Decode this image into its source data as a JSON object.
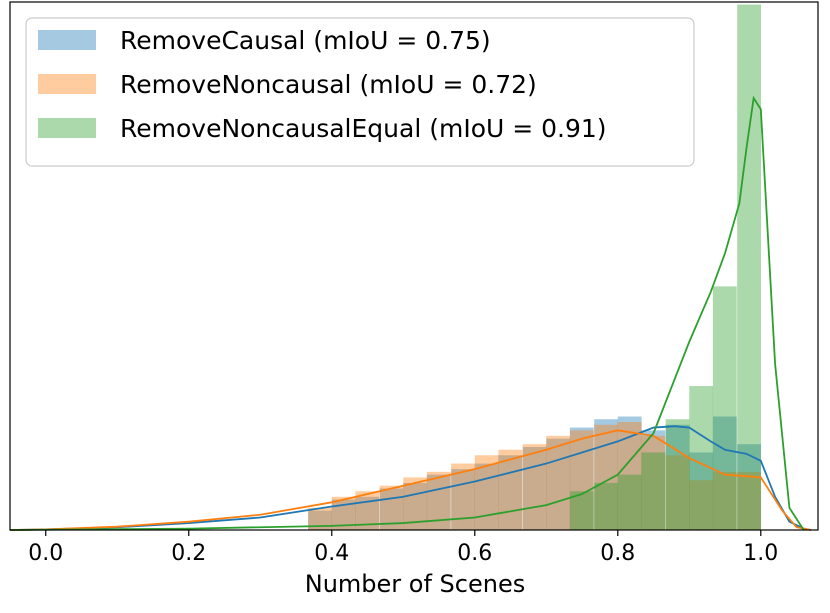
{
  "chart_data": {
    "type": "histogram",
    "title": "",
    "xlabel": "Number of Scenes",
    "ylabel": "",
    "xlim": [
      -0.05,
      1.08
    ],
    "ylim": [
      0,
      1
    ],
    "x_ticks": [
      "0.0",
      "0.2",
      "0.4",
      "0.6",
      "0.8",
      "1.0"
    ],
    "x_tick_values": [
      0.0,
      0.2,
      0.4,
      0.6,
      0.8,
      1.0
    ],
    "grid": false,
    "legend_position": "top-left",
    "bin_width": 0.0333,
    "series": [
      {
        "name": "RemoveCausal (mIoU = 0.75)",
        "color": "#1f77b4",
        "hist_bins": [
          0.367,
          0.4,
          0.433,
          0.467,
          0.5,
          0.533,
          0.567,
          0.6,
          0.633,
          0.667,
          0.7,
          0.733,
          0.767,
          0.8,
          0.833,
          0.867,
          0.9,
          0.933,
          0.967
        ],
        "hist_values": [
          0.07,
          0.11,
          0.12,
          0.15,
          0.17,
          0.2,
          0.22,
          0.24,
          0.27,
          0.3,
          0.33,
          0.37,
          0.4,
          0.41,
          0.36,
          0.38,
          0.28,
          0.41,
          0.31
        ],
        "kde_x": [
          -0.05,
          0.0,
          0.1,
          0.2,
          0.3,
          0.4,
          0.5,
          0.6,
          0.7,
          0.8,
          0.85,
          0.88,
          0.9,
          0.93,
          0.95,
          0.98,
          1.0,
          1.02,
          1.04,
          1.06,
          1.07
        ],
        "kde_y": [
          0.0,
          0.002,
          0.01,
          0.025,
          0.045,
          0.085,
          0.12,
          0.175,
          0.24,
          0.32,
          0.37,
          0.375,
          0.37,
          0.32,
          0.29,
          0.275,
          0.25,
          0.12,
          0.03,
          0.005,
          0.0
        ]
      },
      {
        "name": "RemoveNoncausal (mIoU = 0.72)",
        "color": "#ff7f0e",
        "hist_bins": [
          0.367,
          0.4,
          0.433,
          0.467,
          0.5,
          0.533,
          0.567,
          0.6,
          0.633,
          0.667,
          0.7,
          0.733,
          0.767,
          0.8,
          0.833,
          0.867,
          0.9,
          0.933,
          0.967
        ],
        "hist_values": [
          0.08,
          0.12,
          0.14,
          0.16,
          0.19,
          0.21,
          0.24,
          0.27,
          0.29,
          0.31,
          0.34,
          0.36,
          0.38,
          0.39,
          0.34,
          0.27,
          0.18,
          0.21,
          0.21
        ],
        "kde_x": [
          -0.05,
          0.0,
          0.1,
          0.2,
          0.3,
          0.4,
          0.5,
          0.6,
          0.7,
          0.75,
          0.8,
          0.85,
          0.9,
          0.95,
          1.0,
          1.03,
          1.05,
          1.07
        ],
        "kde_y": [
          0.0,
          0.002,
          0.012,
          0.03,
          0.055,
          0.1,
          0.16,
          0.22,
          0.29,
          0.33,
          0.36,
          0.34,
          0.26,
          0.2,
          0.19,
          0.07,
          0.01,
          0.0
        ]
      },
      {
        "name": "RemoveNoncausalEqual (mIoU = 0.91)",
        "color": "#2ca02c",
        "hist_bins": [
          0.733,
          0.767,
          0.8,
          0.833,
          0.867,
          0.9,
          0.933,
          0.967
        ],
        "hist_values": [
          0.14,
          0.17,
          0.2,
          0.28,
          0.4,
          0.52,
          0.88,
          2.0
        ],
        "kde_x": [
          -0.05,
          0.0,
          0.2,
          0.4,
          0.5,
          0.6,
          0.7,
          0.75,
          0.8,
          0.85,
          0.9,
          0.93,
          0.95,
          0.97,
          0.98,
          0.99,
          1.0,
          1.02,
          1.04,
          1.06
        ],
        "kde_y": [
          0.0,
          0.001,
          0.005,
          0.015,
          0.025,
          0.045,
          0.09,
          0.13,
          0.2,
          0.35,
          0.68,
          0.86,
          1.0,
          1.18,
          1.38,
          1.56,
          1.52,
          0.6,
          0.08,
          0.0
        ]
      }
    ]
  }
}
